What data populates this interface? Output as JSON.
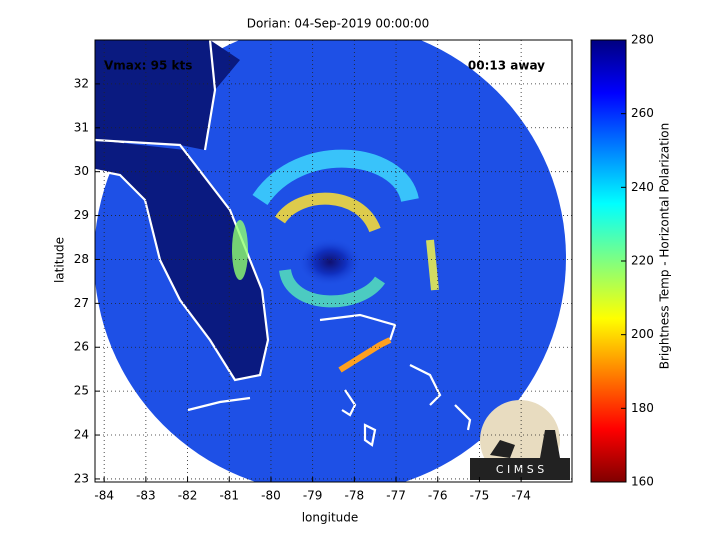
{
  "chart_data": {
    "type": "image",
    "title": "Dorian: 04-Sep-2019 00:00:00",
    "annotations": [
      "Vmax: 95 kts",
      "00:13 away"
    ],
    "x_label": "longitude",
    "y_label": "latitude",
    "xlim": [
      -84.22,
      -72.78
    ],
    "xticks": [
      -84,
      -83,
      -82,
      -81,
      -80,
      -79,
      -78,
      -77,
      -76,
      -75,
      -74
    ],
    "ylim": [
      22.93,
      33.0
    ],
    "yticks": [
      23,
      24,
      25,
      26,
      27,
      28,
      29,
      30,
      31,
      32
    ],
    "grid": true,
    "colorbar": {
      "label": "Brightness Temp - Horizontal Polarization",
      "clim": [
        160,
        280
      ],
      "ticks": [
        160,
        180,
        200,
        220,
        240,
        260,
        280
      ]
    },
    "logo": "C I M S S"
  }
}
